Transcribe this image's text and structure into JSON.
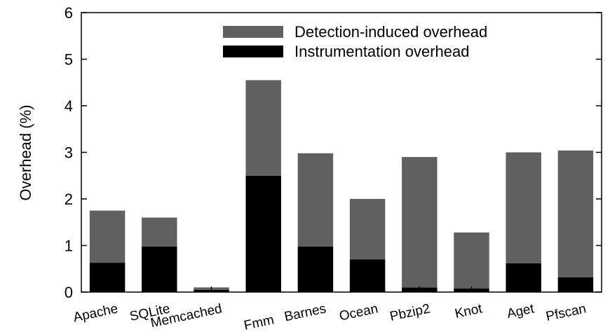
{
  "chart_data": {
    "type": "bar",
    "stacked": true,
    "categories": [
      "Apache",
      "SQLite",
      "Memcached",
      "Fmm",
      "Barnes",
      "Ocean",
      "Pbzip2",
      "Knot",
      "Aget",
      "Pfscan"
    ],
    "series": [
      {
        "name": "Instrumentation overhead",
        "values": [
          0.63,
          0.98,
          0.05,
          2.5,
          0.98,
          0.7,
          0.1,
          0.08,
          0.62,
          0.32
        ],
        "color": "#000000"
      },
      {
        "name": "Detection-induced overhead",
        "values": [
          1.12,
          0.62,
          0.05,
          2.05,
          2.0,
          1.3,
          2.8,
          1.2,
          2.38,
          2.72
        ],
        "color": "#5f6161"
      }
    ],
    "ylabel": "Overhead (%)",
    "xlabel": "",
    "ylim": [
      0,
      6
    ],
    "yticks": [
      0,
      1,
      2,
      3,
      4,
      5,
      6
    ],
    "legend_position": "top-right",
    "grid": false
  }
}
